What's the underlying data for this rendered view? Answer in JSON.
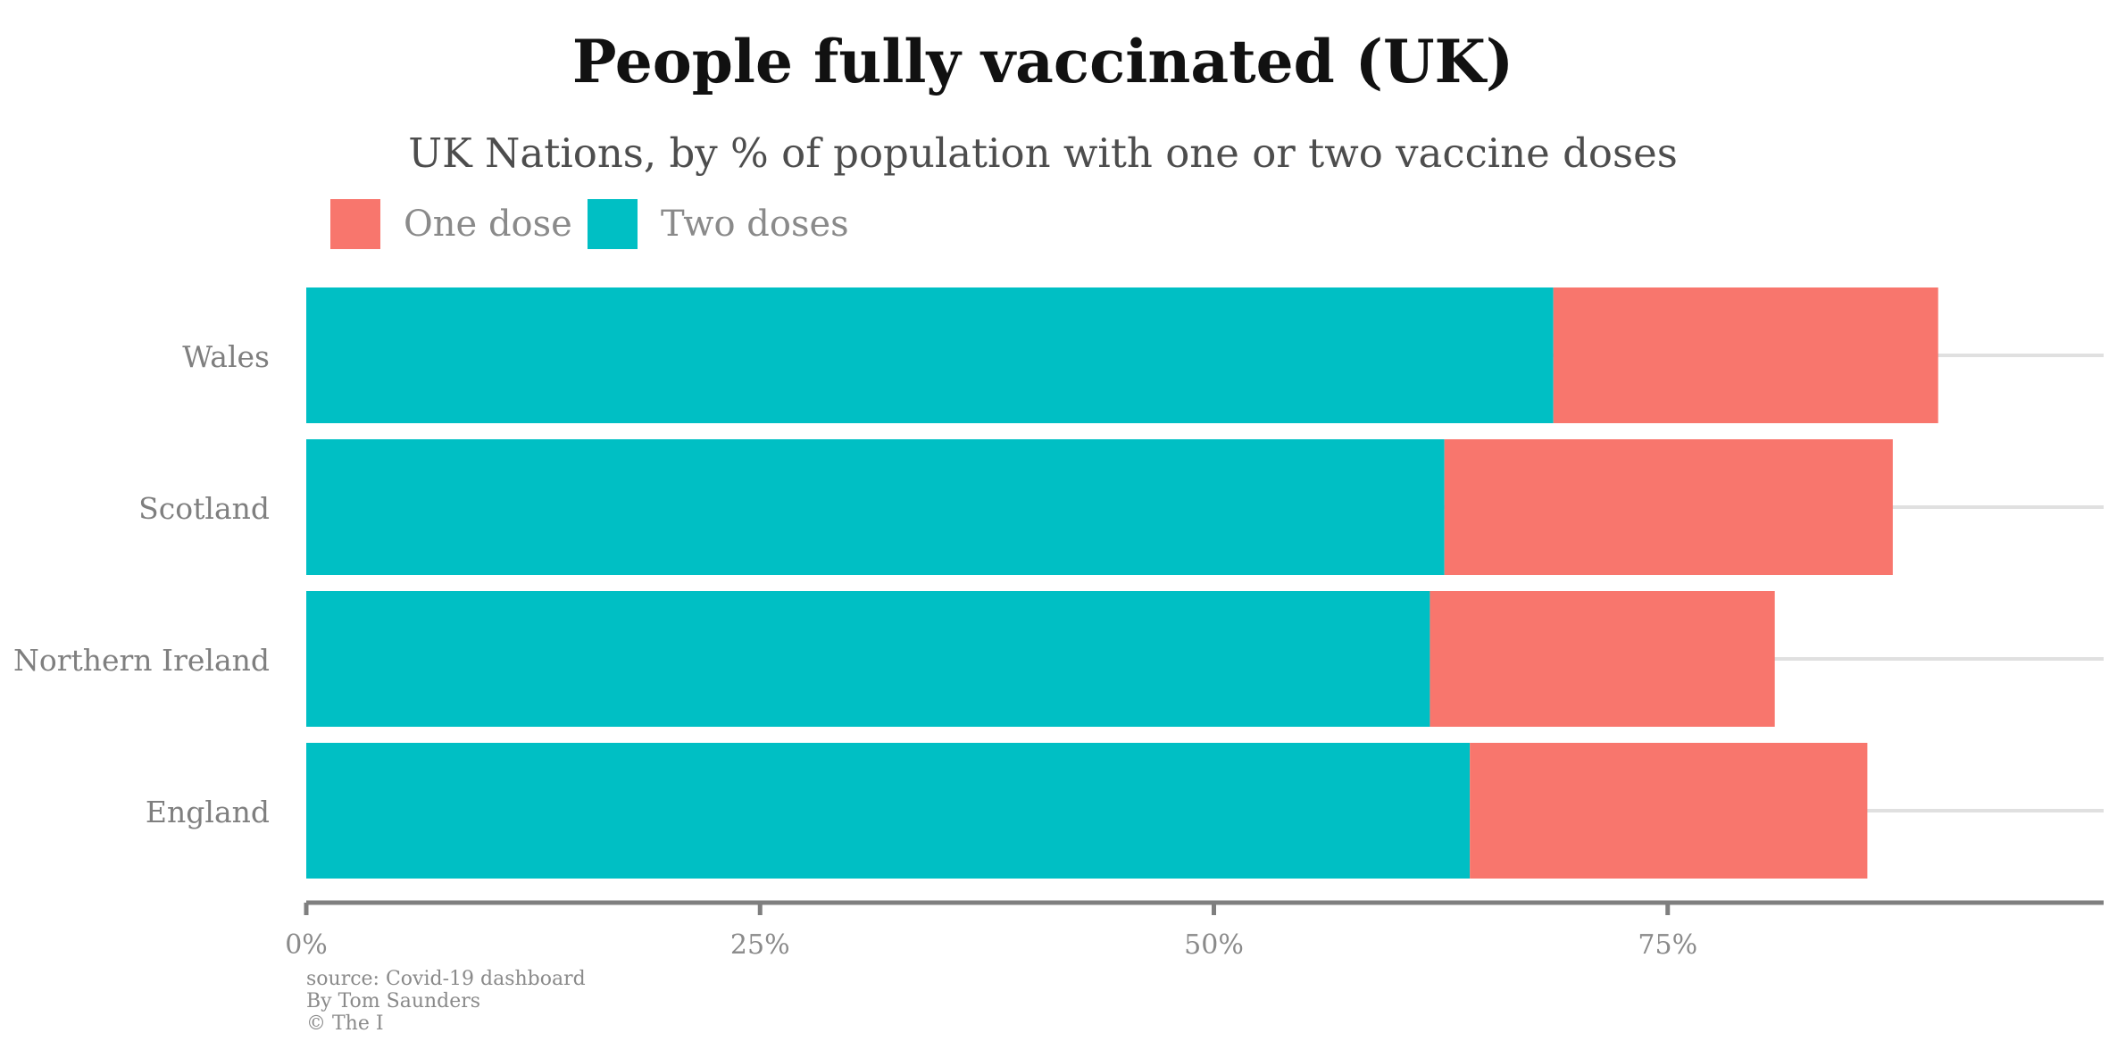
{
  "chart_data": {
    "type": "bar",
    "orientation": "horizontal",
    "stacked": true,
    "title": "People fully vaccinated (UK)",
    "subtitle": "UK Nations, by % of population with one or two vaccine doses",
    "categories": [
      "Wales",
      "Scotland",
      "Northern Ireland",
      "England"
    ],
    "series": [
      {
        "name": "Two doses",
        "color": "#00BFC4",
        "values": [
          68.7,
          62.7,
          61.9,
          64.1
        ]
      },
      {
        "name": "One dose",
        "color": "#F8766D",
        "values": [
          21.2,
          24.7,
          19.0,
          21.9
        ]
      }
    ],
    "legend_order": [
      "One dose",
      "Two doses"
    ],
    "x_ticks": [
      "0%",
      "25%",
      "50%",
      "75%"
    ],
    "x_tick_values": [
      0,
      25,
      50,
      75
    ],
    "xlim": [
      0,
      99
    ],
    "xlabel": "",
    "ylabel": "",
    "legend_position": "top-left",
    "grid": "horizontal reference lines per category",
    "caption": [
      "source: Covid-19 dashboard",
      "By Tom Saunders",
      "© The I"
    ]
  }
}
